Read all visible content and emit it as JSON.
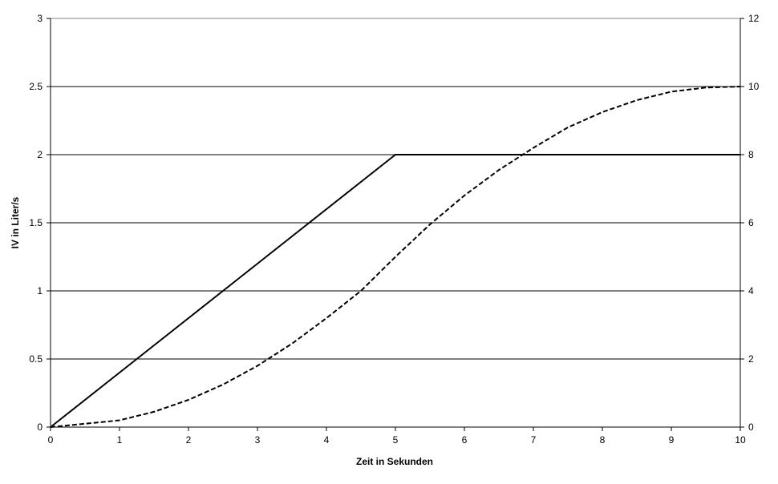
{
  "chart_data": {
    "type": "line",
    "title": "",
    "xlabel": "Zeit in Sekunden",
    "ylabel": "IV in Liter/s",
    "xlim": [
      0,
      10
    ],
    "ylim": [
      0,
      3
    ],
    "y2lim": [
      0,
      12
    ],
    "x_ticks": [
      "0",
      "1",
      "2",
      "3",
      "4",
      "5",
      "6",
      "7",
      "8",
      "9",
      "10"
    ],
    "y_ticks": [
      "0",
      "0.5",
      "1",
      "1.5",
      "2",
      "2.5",
      "3"
    ],
    "y2_ticks": [
      "0",
      "2",
      "4",
      "6",
      "8",
      "10",
      "12"
    ],
    "grid": "horizontal",
    "legend": "none",
    "series": [
      {
        "axis": "left",
        "style": "solid",
        "color": "#000000",
        "x": [
          0,
          1,
          2,
          3,
          4,
          5,
          6,
          7,
          8,
          9,
          10
        ],
        "y": [
          0,
          0.4,
          0.8,
          1.2,
          1.6,
          2.0,
          2.0,
          2.0,
          2.0,
          2.0,
          2.0
        ]
      },
      {
        "axis": "right",
        "style": "dashed",
        "color": "#000000",
        "x": [
          0,
          0.5,
          1,
          1.5,
          2,
          2.5,
          3,
          3.5,
          4,
          4.5,
          5,
          5.5,
          6,
          6.5,
          7,
          7.5,
          8,
          8.5,
          9,
          9.5,
          10
        ],
        "y": [
          0,
          0.1,
          0.2,
          0.45,
          0.8,
          1.25,
          1.8,
          2.45,
          3.2,
          4.0,
          5.0,
          5.95,
          6.8,
          7.55,
          8.2,
          8.8,
          9.25,
          9.6,
          9.85,
          9.97,
          10
        ]
      }
    ]
  }
}
